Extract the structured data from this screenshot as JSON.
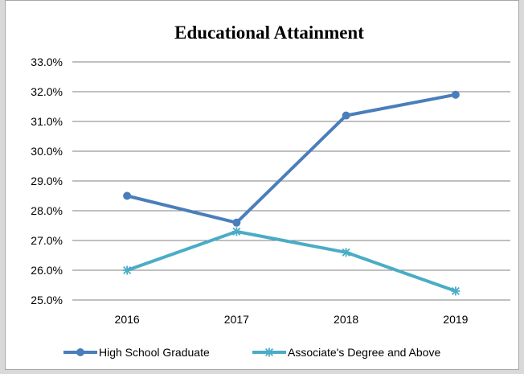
{
  "chart_data": {
    "type": "line",
    "title": "Educational Attainment",
    "xlabel": "",
    "ylabel": "",
    "categories": [
      "2016",
      "2017",
      "2018",
      "2019"
    ],
    "ylim": [
      25.0,
      33.0
    ],
    "yticks": [
      "25.0%",
      "26.0%",
      "27.0%",
      "28.0%",
      "29.0%",
      "30.0%",
      "31.0%",
      "32.0%",
      "33.0%"
    ],
    "grid": true,
    "legend_position": "bottom",
    "series": [
      {
        "name": "High School Graduate",
        "values": [
          28.5,
          27.6,
          31.2,
          31.9
        ],
        "color": "#4a7ebb",
        "marker": "circle"
      },
      {
        "name": "Associate's Degree and Above",
        "values": [
          26.0,
          27.3,
          26.6,
          25.3
        ],
        "color": "#4bacc6",
        "marker": "asterisk"
      }
    ]
  }
}
